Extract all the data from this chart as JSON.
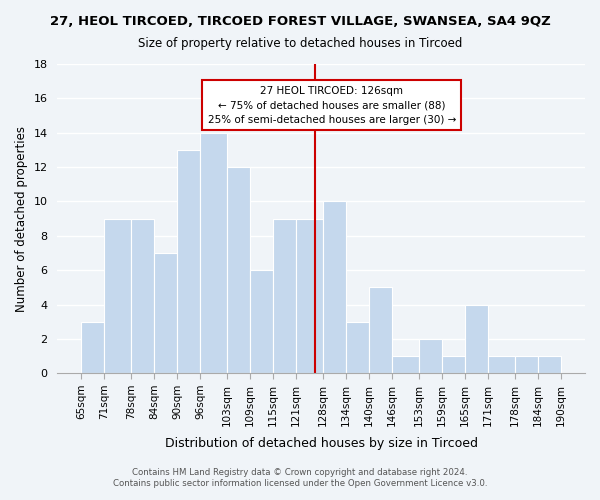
{
  "title": "27, HEOL TIRCOED, TIRCOED FOREST VILLAGE, SWANSEA, SA4 9QZ",
  "subtitle": "Size of property relative to detached houses in Tircoed",
  "xlabel": "Distribution of detached houses by size in Tircoed",
  "ylabel": "Number of detached properties",
  "bin_edges": [
    65,
    71,
    78,
    84,
    90,
    96,
    103,
    109,
    115,
    121,
    128,
    134,
    140,
    146,
    153,
    159,
    165,
    171,
    178,
    184,
    190
  ],
  "bin_labels": [
    "65sqm",
    "71sqm",
    "78sqm",
    "84sqm",
    "90sqm",
    "96sqm",
    "103sqm",
    "109sqm",
    "115sqm",
    "121sqm",
    "128sqm",
    "134sqm",
    "140sqm",
    "146sqm",
    "153sqm",
    "159sqm",
    "165sqm",
    "171sqm",
    "178sqm",
    "184sqm",
    "190sqm"
  ],
  "counts": [
    3,
    9,
    9,
    7,
    13,
    14,
    12,
    6,
    9,
    9,
    10,
    3,
    5,
    1,
    2,
    1,
    4,
    1,
    1,
    1
  ],
  "bar_color": "#c5d8ed",
  "bar_edge_color": "#ffffff",
  "property_line_x": 126,
  "property_line_color": "#cc0000",
  "annotation_box_color": "#cc0000",
  "annotation_title": "27 HEOL TIRCOED: 126sqm",
  "annotation_line1": "← 75% of detached houses are smaller (88)",
  "annotation_line2": "25% of semi-detached houses are larger (30) →",
  "ylim": [
    0,
    18
  ],
  "yticks": [
    0,
    2,
    4,
    6,
    8,
    10,
    12,
    14,
    16,
    18
  ],
  "footer_line1": "Contains HM Land Registry data © Crown copyright and database right 2024.",
  "footer_line2": "Contains public sector information licensed under the Open Government Licence v3.0.",
  "background_color": "#f0f4f8",
  "plot_background_color": "#f0f4f8"
}
